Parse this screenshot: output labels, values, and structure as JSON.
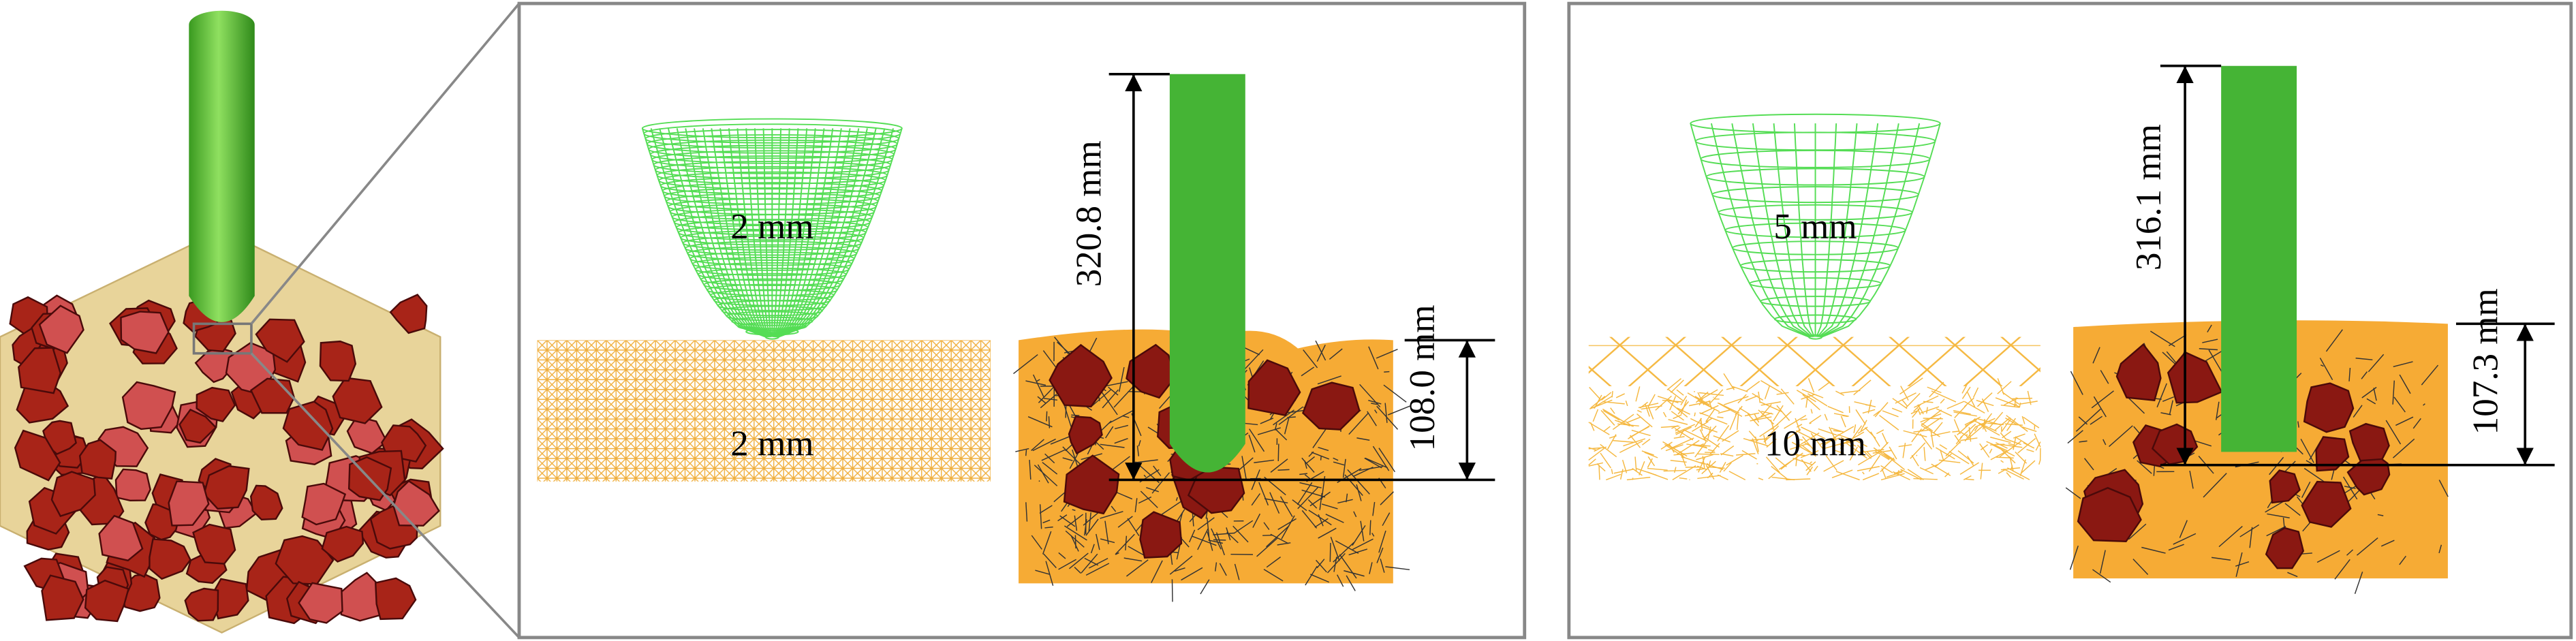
{
  "panels": [
    {
      "tool_label": "2 mm",
      "target_label": "2 mm",
      "length_label": "320.8 mm",
      "depth_label": "108.0 mm"
    },
    {
      "tool_label": "5 mm",
      "target_label": "10 mm",
      "length_label": "316.1 mm",
      "depth_label": "107.3 mm"
    }
  ]
}
